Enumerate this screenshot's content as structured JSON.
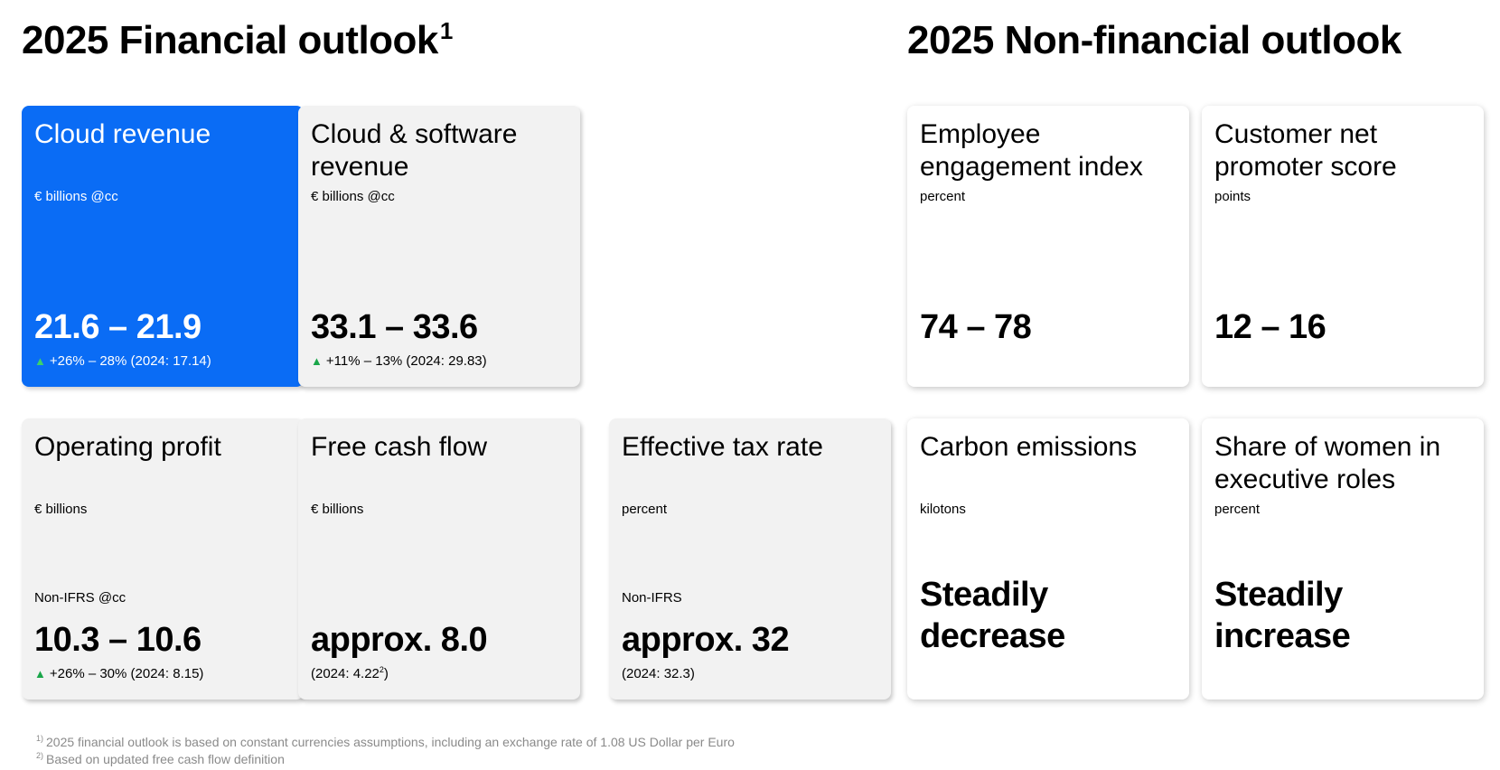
{
  "headings": {
    "financial": "2025 Financial outlook",
    "financial_sup": "1",
    "non_financial": "2025 Non-financial outlook"
  },
  "cards": {
    "cloud_revenue": {
      "title": "Cloud revenue",
      "unit": "€ billions @cc",
      "value": "21.6 – 21.9",
      "note": "+26% – 28% (2024: 17.14)"
    },
    "cloud_software_revenue": {
      "title": "Cloud & software revenue",
      "unit": "€ billions @cc",
      "value": "33.1 – 33.6",
      "note": "+11% –  13% (2024: 29.83)"
    },
    "employee_engagement": {
      "title": "Employee engagement index",
      "unit": "percent",
      "value": "74 – 78"
    },
    "customer_nps": {
      "title": "Customer net promoter score",
      "unit": "points",
      "value": "12 – 16"
    },
    "operating_profit": {
      "title": "Operating profit",
      "unit": "€ billions",
      "sublabel": "Non-IFRS @cc",
      "value": "10.3 – 10.6",
      "note": "+26% – 30% (2024: 8.15)"
    },
    "free_cash_flow": {
      "title": "Free cash flow",
      "unit": "€ billions",
      "value": "approx. 8.0",
      "note": "(2024: 4.22",
      "note_sup": "2",
      "note_end": ")"
    },
    "effective_tax_rate": {
      "title": "Effective tax rate",
      "unit": "percent",
      "sublabel": "Non-IFRS",
      "value": "approx. 32",
      "note": "(2024: 32.3)"
    },
    "carbon_emissions": {
      "title": "Carbon emissions",
      "unit": "kilotons",
      "value": "Steadily decrease"
    },
    "women_executive": {
      "title": "Share of women in executive roles",
      "unit": "percent",
      "value": "Steadily increase"
    }
  },
  "icons": {
    "up_triangle": "▲"
  },
  "colors": {
    "accent_blue": "#0a6cf5",
    "card_grey": "#f2f2f2",
    "up_green": "#1aa64a"
  },
  "footnotes": [
    {
      "mark": "1)",
      "text": "2025 financial outlook is based on constant currencies assumptions, including an exchange rate of 1.08 US Dollar per Euro"
    },
    {
      "mark": "2)",
      "text": "Based on updated free cash flow definition"
    }
  ]
}
